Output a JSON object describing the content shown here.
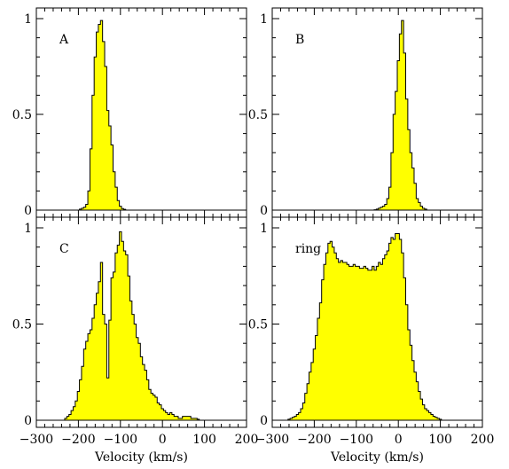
{
  "chart_data": [
    {
      "type": "area",
      "panel_label": "A",
      "xlim": [
        -300,
        200
      ],
      "ylim": [
        0,
        1.05
      ],
      "xticks": [
        -300,
        -200,
        -100,
        0,
        100,
        200
      ],
      "xtick_labels": [
        "",
        "",
        "",
        "",
        "",
        ""
      ],
      "yticks": [
        0,
        0.5,
        1
      ],
      "ytick_labels": [
        "0",
        "0.5",
        "1"
      ],
      "xlabel": "",
      "fill_color": "#ffff00",
      "x": [
        -205,
        -200,
        -195,
        -190,
        -185,
        -180,
        -175,
        -170,
        -165,
        -160,
        -155,
        -150,
        -145,
        -140,
        -135,
        -130,
        -125,
        -120,
        -115,
        -110,
        -105,
        -100,
        -95,
        -90,
        -85,
        -80
      ],
      "y": [
        0,
        0,
        0.005,
        0.01,
        0.015,
        0.03,
        0.1,
        0.32,
        0.6,
        0.8,
        0.93,
        0.97,
        0.99,
        0.88,
        0.75,
        0.52,
        0.44,
        0.34,
        0.2,
        0.12,
        0.05,
        0.02,
        0.008,
        0.004,
        0,
        0
      ]
    },
    {
      "type": "area",
      "panel_label": "B",
      "xlim": [
        -300,
        200
      ],
      "ylim": [
        0,
        1.05
      ],
      "xticks": [
        -300,
        -200,
        -100,
        0,
        100,
        200
      ],
      "xtick_labels": [
        "",
        "",
        "",
        "",
        "",
        ""
      ],
      "yticks": [
        0,
        0.5,
        1
      ],
      "ytick_labels": [
        "0",
        "0.5",
        "1"
      ],
      "xlabel": "",
      "fill_color": "#ffff00",
      "x": [
        -60,
        -55,
        -50,
        -45,
        -40,
        -35,
        -30,
        -25,
        -20,
        -15,
        -10,
        -5,
        0,
        5,
        10,
        15,
        20,
        25,
        30,
        35,
        40,
        45,
        50,
        55,
        60,
        65,
        70,
        75
      ],
      "y": [
        0,
        0.002,
        0.005,
        0.01,
        0.015,
        0.02,
        0.03,
        0.06,
        0.12,
        0.3,
        0.5,
        0.62,
        0.78,
        0.92,
        0.99,
        0.82,
        0.58,
        0.42,
        0.3,
        0.22,
        0.14,
        0.06,
        0.04,
        0.02,
        0.01,
        0.005,
        0,
        0
      ]
    },
    {
      "type": "area",
      "panel_label": "C",
      "xlim": [
        -300,
        200
      ],
      "ylim": [
        0,
        1.05
      ],
      "xticks": [
        -300,
        -200,
        -100,
        0,
        100,
        200
      ],
      "xtick_labels": [
        "−300",
        "−200",
        "−100",
        "0",
        "100",
        "200"
      ],
      "yticks": [
        0,
        0.5,
        1
      ],
      "ytick_labels": [
        "0",
        "0.5",
        "1"
      ],
      "xlabel": "Velocity (km/s)",
      "fill_color": "#ffff00",
      "x": [
        -235,
        -230,
        -225,
        -220,
        -215,
        -210,
        -205,
        -200,
        -195,
        -190,
        -185,
        -180,
        -175,
        -170,
        -165,
        -160,
        -155,
        -150,
        -145,
        -140,
        -135,
        -130,
        -125,
        -120,
        -115,
        -110,
        -105,
        -100,
        -95,
        -90,
        -85,
        -80,
        -75,
        -70,
        -65,
        -60,
        -55,
        -50,
        -45,
        -40,
        -35,
        -30,
        -25,
        -20,
        -15,
        -10,
        -5,
        0,
        5,
        10,
        15,
        20,
        25,
        30,
        35,
        40,
        45,
        50,
        55,
        60,
        65,
        70,
        75,
        80,
        85,
        90,
        95
      ],
      "y": [
        0,
        0.01,
        0.02,
        0.03,
        0.05,
        0.07,
        0.1,
        0.15,
        0.21,
        0.28,
        0.37,
        0.41,
        0.45,
        0.47,
        0.53,
        0.6,
        0.66,
        0.72,
        0.82,
        0.55,
        0.5,
        0.22,
        0.52,
        0.74,
        0.77,
        0.87,
        0.91,
        0.98,
        0.93,
        0.88,
        0.86,
        0.75,
        0.62,
        0.55,
        0.5,
        0.43,
        0.4,
        0.33,
        0.29,
        0.26,
        0.21,
        0.16,
        0.14,
        0.13,
        0.12,
        0.09,
        0.08,
        0.06,
        0.05,
        0.04,
        0.03,
        0.04,
        0.03,
        0.02,
        0.02,
        0.01,
        0.01,
        0.02,
        0.02,
        0.02,
        0.02,
        0.01,
        0.01,
        0.01,
        0.005,
        0,
        0
      ]
    },
    {
      "type": "area",
      "panel_label": "ring",
      "xlim": [
        -300,
        200
      ],
      "ylim": [
        0,
        1.05
      ],
      "xticks": [
        -300,
        -200,
        -100,
        0,
        100,
        200
      ],
      "xtick_labels": [
        "−300",
        "−200",
        "−100",
        "0",
        "100",
        "200"
      ],
      "yticks": [
        0,
        0.5,
        1
      ],
      "ytick_labels": [
        "0",
        "0.5",
        "1"
      ],
      "xlabel": "Velocity (km/s)",
      "fill_color": "#ffff00",
      "x": [
        -265,
        -260,
        -255,
        -250,
        -245,
        -240,
        -235,
        -230,
        -225,
        -220,
        -215,
        -210,
        -205,
        -200,
        -195,
        -190,
        -185,
        -180,
        -175,
        -170,
        -165,
        -160,
        -155,
        -150,
        -145,
        -140,
        -135,
        -130,
        -125,
        -120,
        -115,
        -110,
        -105,
        -100,
        -95,
        -90,
        -85,
        -80,
        -75,
        -70,
        -65,
        -60,
        -55,
        -50,
        -45,
        -40,
        -35,
        -30,
        -25,
        -20,
        -15,
        -10,
        -5,
        0,
        5,
        10,
        15,
        20,
        25,
        30,
        35,
        40,
        45,
        50,
        55,
        60,
        65,
        70,
        75,
        80,
        85,
        90,
        95,
        100,
        105,
        110
      ],
      "y": [
        0,
        0.005,
        0.01,
        0.015,
        0.02,
        0.03,
        0.04,
        0.06,
        0.09,
        0.14,
        0.19,
        0.25,
        0.3,
        0.37,
        0.44,
        0.53,
        0.61,
        0.73,
        0.81,
        0.87,
        0.92,
        0.93,
        0.9,
        0.87,
        0.84,
        0.82,
        0.83,
        0.82,
        0.82,
        0.81,
        0.8,
        0.8,
        0.81,
        0.8,
        0.8,
        0.79,
        0.79,
        0.8,
        0.79,
        0.78,
        0.78,
        0.8,
        0.78,
        0.8,
        0.82,
        0.81,
        0.84,
        0.86,
        0.88,
        0.92,
        0.95,
        0.94,
        0.97,
        0.97,
        0.94,
        0.87,
        0.74,
        0.6,
        0.47,
        0.39,
        0.31,
        0.25,
        0.2,
        0.15,
        0.11,
        0.08,
        0.06,
        0.05,
        0.04,
        0.03,
        0.02,
        0.015,
        0.01,
        0.005,
        0,
        0
      ]
    }
  ]
}
